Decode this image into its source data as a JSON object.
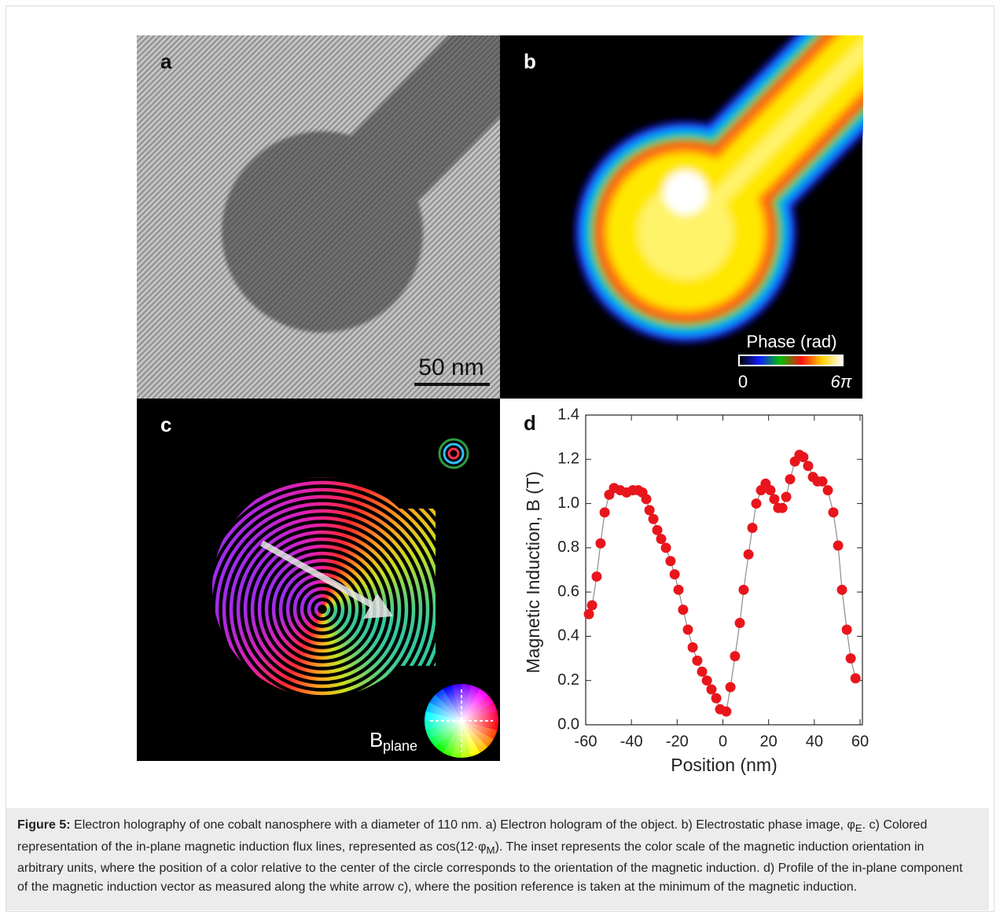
{
  "panels": {
    "a": {
      "label": "a",
      "scale_bar": "50 nm"
    },
    "b": {
      "label": "b",
      "colorbar_title": "Phase (rad)",
      "colorbar_min": "0",
      "colorbar_max": "6π"
    },
    "c": {
      "label": "c",
      "inset_label": "B",
      "inset_subscript": "plane"
    },
    "d": {
      "label": "d"
    }
  },
  "chart_data": {
    "type": "line",
    "xlabel": "Position (nm)",
    "ylabel": "Magnetic Induction, B (T)",
    "x": [
      -58.6,
      -57.2,
      -55.2,
      -53.5,
      -51.7,
      -49.7,
      -47.6,
      -44.9,
      -42.1,
      -39.4,
      -37,
      -35.2,
      -33.5,
      -32.1,
      -30.4,
      -28.7,
      -27,
      -24.9,
      -22.9,
      -21.1,
      -19.4,
      -17.4,
      -15.3,
      -13.2,
      -11.2,
      -9.1,
      -7,
      -5,
      -2.9,
      -1.2,
      1.5,
      3.3,
      5.3,
      7.4,
      9.1,
      11.2,
      12.9,
      14.6,
      16.7,
      18.7,
      20.8,
      22.5,
      24.2,
      26,
      27.7,
      29.4,
      31.5,
      33.5,
      35.2,
      37.3,
      39.4,
      41.4,
      43.5,
      45.9,
      48.3,
      50.4,
      52.1,
      54.2,
      55.9,
      58
    ],
    "values": [
      0.5,
      0.54,
      0.67,
      0.82,
      0.96,
      1.04,
      1.07,
      1.06,
      1.05,
      1.06,
      1.06,
      1.05,
      1.02,
      0.97,
      0.93,
      0.88,
      0.84,
      0.8,
      0.74,
      0.68,
      0.61,
      0.52,
      0.43,
      0.35,
      0.29,
      0.24,
      0.2,
      0.16,
      0.12,
      0.07,
      0.06,
      0.17,
      0.31,
      0.46,
      0.61,
      0.77,
      0.89,
      1.0,
      1.06,
      1.09,
      1.06,
      1.02,
      0.98,
      0.98,
      1.03,
      1.11,
      1.19,
      1.22,
      1.21,
      1.17,
      1.12,
      1.1,
      1.1,
      1.06,
      0.96,
      0.81,
      0.61,
      0.43,
      0.3,
      0.21
    ],
    "color": "#e8161c",
    "line_color": "#8c8c8c",
    "xlim": [
      -60,
      60
    ],
    "xticks": [
      -60,
      -40,
      -20,
      0,
      20,
      40,
      60
    ],
    "ylim": [
      0,
      1.4
    ],
    "yticks": [
      {
        "value": 0,
        "label": "0.0"
      },
      0.2,
      0.4,
      0.6,
      0.8,
      {
        "value": 1,
        "label": "1.0"
      },
      1.2,
      1.4
    ]
  },
  "caption": {
    "label": "Figure 5:",
    "parts": [
      "Electron holography of one cobalt nanosphere with a diameter of 110 nm. a) Electron hologram of the object. b) Electrostatic phase image, φ",
      "E",
      ". c) Colored representation of the in-plane magnetic induction flux lines, represented as cos(12·φ",
      "M",
      "). The inset represents the color scale of the magnetic induction orientation in arbitrary units, where the position of a color relative to the center of the circle corresponds to the orientation of the magnetic induction. d) Profile of the in-plane component of the magnetic induction vector as measured along the white arrow c), where the position reference is taken at the minimum of the magnetic induction."
    ]
  }
}
